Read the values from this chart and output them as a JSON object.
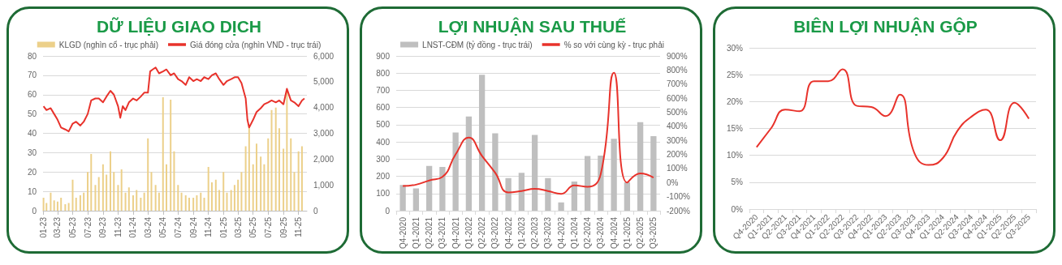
{
  "chart_data": [
    {
      "type": "line",
      "title": "DỮ LIỆU GIAO DỊCH",
      "xlim": [
        "2023-01-01",
        "2025-12-05"
      ],
      "xticks": [
        {
          "value": "2023-01-01",
          "label": "01-23"
        },
        {
          "value": "2023-03-01",
          "label": "03-23"
        },
        {
          "value": "2023-05-01",
          "label": "05-23"
        },
        {
          "value": "2023-07-01",
          "label": "07-23"
        },
        {
          "value": "2023-09-01",
          "label": "09-23"
        },
        {
          "value": "2023-11-01",
          "label": "11-23"
        },
        {
          "value": "2024-01-01",
          "label": "01-24"
        },
        {
          "value": "2024-03-01",
          "label": "03-24"
        },
        {
          "value": "2024-05-01",
          "label": "05-24"
        },
        {
          "value": "2024-07-01",
          "label": "07-24"
        },
        {
          "value": "2024-09-01",
          "label": "09-24"
        },
        {
          "value": "2024-11-01",
          "label": "11-24"
        },
        {
          "value": "2025-01-01",
          "label": "01-25"
        },
        {
          "value": "2025-03-01",
          "label": "03-25"
        },
        {
          "value": "2025-05-01",
          "label": "05-25"
        },
        {
          "value": "2025-07-01",
          "label": "07-25"
        },
        {
          "value": "2025-09-01",
          "label": "09-25"
        },
        {
          "value": "2025-11-01",
          "label": "11-25"
        }
      ],
      "ylim": [
        0,
        80
      ],
      "yticks": [
        0,
        10,
        20,
        30,
        40,
        50,
        60,
        70,
        80
      ],
      "y2lim": [
        0,
        6000
      ],
      "y2ticks": [
        0,
        {
          "value": 1000,
          "label": "1,000"
        },
        {
          "value": 2000,
          "label": "2,000"
        },
        {
          "value": 3000,
          "label": "3,000"
        },
        {
          "value": 4000,
          "label": "4,000"
        },
        {
          "value": 5000,
          "label": "5,000"
        },
        {
          "value": 6000,
          "label": "6,000"
        }
      ],
      "grid": "y",
      "legend": "top",
      "series": [
        {
          "name": "KLGD (nghìn cổ - trục phải)",
          "type": "bar",
          "axis": "y2",
          "color": "#ecd08a",
          "x": [
            "2023-01-03",
            "2023-01-15",
            "2023-02-01",
            "2023-02-15",
            "2023-03-01",
            "2023-03-15",
            "2023-04-01",
            "2023-04-15",
            "2023-05-01",
            "2023-05-15",
            "2023-06-01",
            "2023-06-15",
            "2023-07-01",
            "2023-07-15",
            "2023-08-01",
            "2023-08-15",
            "2023-09-01",
            "2023-09-15",
            "2023-10-01",
            "2023-10-15",
            "2023-11-01",
            "2023-11-15",
            "2023-12-01",
            "2023-12-15",
            "2024-01-01",
            "2024-01-15",
            "2024-02-01",
            "2024-02-15",
            "2024-03-01",
            "2024-03-15",
            "2024-04-01",
            "2024-04-15",
            "2024-05-01",
            "2024-05-15",
            "2024-06-01",
            "2024-06-15",
            "2024-07-01",
            "2024-07-15",
            "2024-08-01",
            "2024-08-15",
            "2024-09-01",
            "2024-09-15",
            "2024-10-01",
            "2024-10-15",
            "2024-11-01",
            "2024-11-15",
            "2024-12-01",
            "2024-12-15",
            "2025-01-01",
            "2025-01-15",
            "2025-02-01",
            "2025-02-15",
            "2025-03-01",
            "2025-03-15",
            "2025-04-01",
            "2025-04-15",
            "2025-05-01",
            "2025-05-15",
            "2025-06-01",
            "2025-06-15",
            "2025-07-01",
            "2025-07-15",
            "2025-08-01",
            "2025-08-15",
            "2025-09-01",
            "2025-09-15",
            "2025-10-01",
            "2025-10-15",
            "2025-11-01",
            "2025-11-15"
          ],
          "values": [
            500,
            300,
            700,
            400,
            350,
            500,
            250,
            300,
            1200,
            500,
            600,
            700,
            1500,
            2200,
            1000,
            1300,
            1800,
            1400,
            2300,
            1500,
            1000,
            1600,
            700,
            900,
            600,
            800,
            500,
            700,
            2800,
            1500,
            1000,
            700,
            4400,
            1800,
            4300,
            2300,
            1000,
            700,
            600,
            500,
            500,
            600,
            700,
            500,
            1700,
            1100,
            1200,
            800,
            1500,
            700,
            800,
            1000,
            1200,
            1500,
            2500,
            3300,
            1800,
            2600,
            2100,
            1800,
            2800,
            3900,
            4000,
            3200,
            2400,
            4600,
            2800,
            1500,
            2300,
            2500
          ]
        },
        {
          "name": "Giá đóng cửa (nghìn VND - trục trái)",
          "color": "#e8322b",
          "x": [
            "2023-01-03",
            "2023-01-15",
            "2023-02-01",
            "2023-02-15",
            "2023-03-01",
            "2023-03-15",
            "2023-04-01",
            "2023-04-15",
            "2023-05-01",
            "2023-05-15",
            "2023-06-01",
            "2023-06-15",
            "2023-07-01",
            "2023-07-15",
            "2023-08-01",
            "2023-08-15",
            "2023-09-01",
            "2023-09-15",
            "2023-10-01",
            "2023-10-15",
            "2023-11-01",
            "2023-11-10",
            "2023-11-20",
            "2023-12-01",
            "2023-12-15",
            "2024-01-01",
            "2024-01-15",
            "2024-02-01",
            "2024-02-15",
            "2024-03-01",
            "2024-03-10",
            "2024-03-20",
            "2024-04-01",
            "2024-04-15",
            "2024-05-01",
            "2024-05-15",
            "2024-06-01",
            "2024-06-15",
            "2024-07-01",
            "2024-07-15",
            "2024-08-01",
            "2024-08-15",
            "2024-09-01",
            "2024-09-15",
            "2024-10-01",
            "2024-10-15",
            "2024-11-01",
            "2024-11-15",
            "2024-12-01",
            "2024-12-15",
            "2025-01-01",
            "2025-01-15",
            "2025-02-01",
            "2025-02-15",
            "2025-03-01",
            "2025-03-15",
            "2025-04-01",
            "2025-04-08",
            "2025-04-15",
            "2025-05-01",
            "2025-05-15",
            "2025-06-01",
            "2025-06-15",
            "2025-07-01",
            "2025-07-15",
            "2025-08-01",
            "2025-08-15",
            "2025-09-01",
            "2025-09-15",
            "2025-10-01",
            "2025-10-15",
            "2025-11-01",
            "2025-11-15",
            "2025-11-25"
          ],
          "values": [
            54,
            52,
            53,
            50,
            47,
            43,
            42,
            41,
            45,
            46,
            44,
            46,
            50,
            57,
            58,
            58,
            56,
            59,
            62,
            60,
            54,
            48,
            54,
            52,
            56,
            58,
            57,
            59,
            61,
            61,
            72,
            73,
            74,
            71,
            72,
            73,
            70,
            71,
            68,
            67,
            65,
            69,
            67,
            68,
            67,
            69,
            68,
            70,
            71,
            68,
            65,
            67,
            68,
            69,
            69,
            66,
            58,
            47,
            43,
            47,
            51,
            53,
            55,
            56,
            57,
            56,
            57,
            55,
            63,
            57,
            56,
            54,
            57,
            58
          ]
        }
      ]
    },
    {
      "type": "bar",
      "title": "LỢI NHUẬN SAU THUẾ",
      "categories": [
        "Q4-2020",
        "Q1-2021",
        "Q2-2021",
        "Q3-2021",
        "Q4-2021",
        "Q1-2022",
        "Q2-2022",
        "Q3-2022",
        "Q4-2022",
        "Q1-2023",
        "Q2-2023",
        "Q3-2023",
        "Q4-2023",
        "Q1-2024",
        "Q2-2024",
        "Q3-2024",
        "Q4-2024",
        "Q1-2025",
        "Q2-2025",
        "Q3-2025"
      ],
      "ylim": [
        0,
        900
      ],
      "yticks": [
        0,
        100,
        200,
        300,
        400,
        500,
        600,
        700,
        800,
        900
      ],
      "y2lim": [
        -200,
        900
      ],
      "y2ticks": [
        {
          "value": -200,
          "label": "-200%"
        },
        {
          "value": -100,
          "label": "-100%"
        },
        {
          "value": 0,
          "label": "0%"
        },
        {
          "value": 100,
          "label": "100%"
        },
        {
          "value": 200,
          "label": "200%"
        },
        {
          "value": 300,
          "label": "300%"
        },
        {
          "value": 400,
          "label": "400%"
        },
        {
          "value": 500,
          "label": "500%"
        },
        {
          "value": 600,
          "label": "600%"
        },
        {
          "value": 700,
          "label": "700%"
        },
        {
          "value": 800,
          "label": "800%"
        },
        {
          "value": 900,
          "label": "900%"
        }
      ],
      "grid": "y",
      "legend": "top",
      "series": [
        {
          "name": "LNST-CĐM (tỷ đồng - trục trái)",
          "color": "#bfbfbf",
          "values": [
            150,
            130,
            260,
            255,
            455,
            548,
            790,
            450,
            190,
            220,
            440,
            190,
            48,
            170,
            318,
            320,
            418,
            165,
            515,
            433
          ]
        },
        {
          "name": "% so với cùng kỳ - trục phải",
          "type": "line",
          "axis": "y2",
          "color": "#e8322b",
          "values": [
            -25,
            -15,
            15,
            40,
            200,
            320,
            190,
            70,
            -70,
            -60,
            -45,
            -60,
            -80,
            -20,
            -30,
            60,
            780,
            0,
            65,
            35
          ]
        }
      ]
    },
    {
      "type": "line",
      "title": "BIÊN LỢI NHUẬN GỘP",
      "categories": [
        "Q4-2020",
        "Q1-2021",
        "Q2-2021",
        "Q3-2021",
        "Q4-2021",
        "Q1-2022",
        "Q2-2022",
        "Q3-2022",
        "Q4-2022",
        "Q1-2023",
        "Q2-2023",
        "Q3-2023",
        "Q4-2023",
        "Q1-2024",
        "Q2-2024",
        "Q3-2024",
        "Q4-2024",
        "Q1-2025",
        "Q2-2025",
        "Q3-2025"
      ],
      "ylim": [
        0,
        30
      ],
      "yticks": [
        {
          "value": 0,
          "label": "0%"
        },
        {
          "value": 5,
          "label": "5%"
        },
        {
          "value": 10,
          "label": "10%"
        },
        {
          "value": 15,
          "label": "15%"
        },
        {
          "value": 20,
          "label": "20%"
        },
        {
          "value": 25,
          "label": "25%"
        },
        {
          "value": 30,
          "label": "30%"
        }
      ],
      "grid": "y",
      "color": "#e8322b",
      "values": [
        11.5,
        15,
        18.5,
        18.2,
        23.8,
        23.8,
        26,
        19.2,
        19,
        17.3,
        21.3,
        10.5,
        8.2,
        9.5,
        14.5,
        17.2,
        18.5,
        12.8,
        19.8,
        16.8
      ]
    }
  ]
}
